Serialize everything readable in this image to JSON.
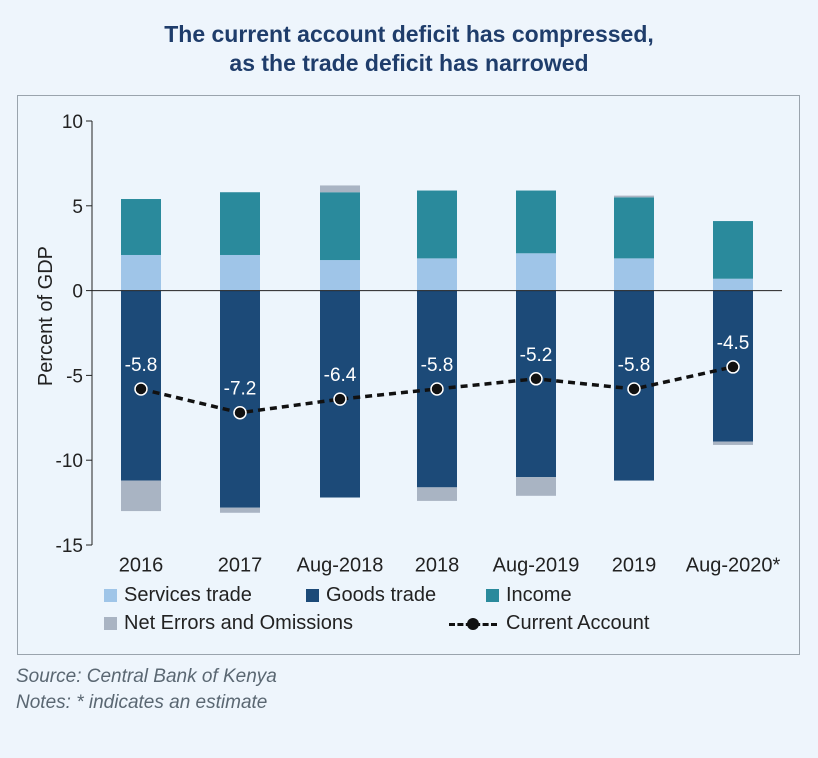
{
  "title_line1": "The current account deficit has compressed,",
  "title_line2": "as the trade deficit has narrowed",
  "legend": {
    "services": "Services trade",
    "goods": "Goods trade",
    "income": "Income",
    "errors": "Net Errors and Omissions",
    "current": "Current Account"
  },
  "source": "Source: Central Bank of Kenya",
  "notes": "Notes: * indicates an estimate",
  "colors": {
    "services": "#9fc5e8",
    "goods": "#1c4a78",
    "income": "#2a8a9c",
    "errors": "#a9b4c3",
    "line": "#111111"
  },
  "chart_data": {
    "type": "bar",
    "categories": [
      "2016",
      "2017",
      "Aug-2018",
      "2018",
      "Aug-2019",
      "2019",
      "Aug-2020*"
    ],
    "ylabel": "Percent of GDP",
    "ylim": [
      -15,
      10
    ],
    "yticks": [
      10,
      5,
      0,
      -5,
      -10,
      -15
    ],
    "series": [
      {
        "name": "Services trade",
        "values": [
          2.1,
          2.1,
          1.8,
          1.9,
          2.2,
          1.9,
          0.7
        ]
      },
      {
        "name": "Goods trade",
        "values": [
          -11.2,
          -12.8,
          -12.2,
          -11.6,
          -11.0,
          -11.2,
          -8.9
        ]
      },
      {
        "name": "Income",
        "values": [
          3.3,
          3.7,
          4.0,
          4.0,
          3.7,
          3.6,
          3.4
        ]
      },
      {
        "name": "Net Errors and Omissions",
        "values": [
          -1.8,
          -0.3,
          0.4,
          -0.8,
          -1.1,
          0.1,
          -0.2
        ]
      }
    ],
    "line": {
      "name": "Current Account",
      "values": [
        -5.8,
        -7.2,
        -6.4,
        -5.8,
        -5.2,
        -5.8,
        -4.5
      ]
    },
    "data_labels": [
      "-5.8",
      "-7.2",
      "-6.4",
      "-5.8",
      "-5.2",
      "-5.8",
      "-4.5"
    ]
  }
}
